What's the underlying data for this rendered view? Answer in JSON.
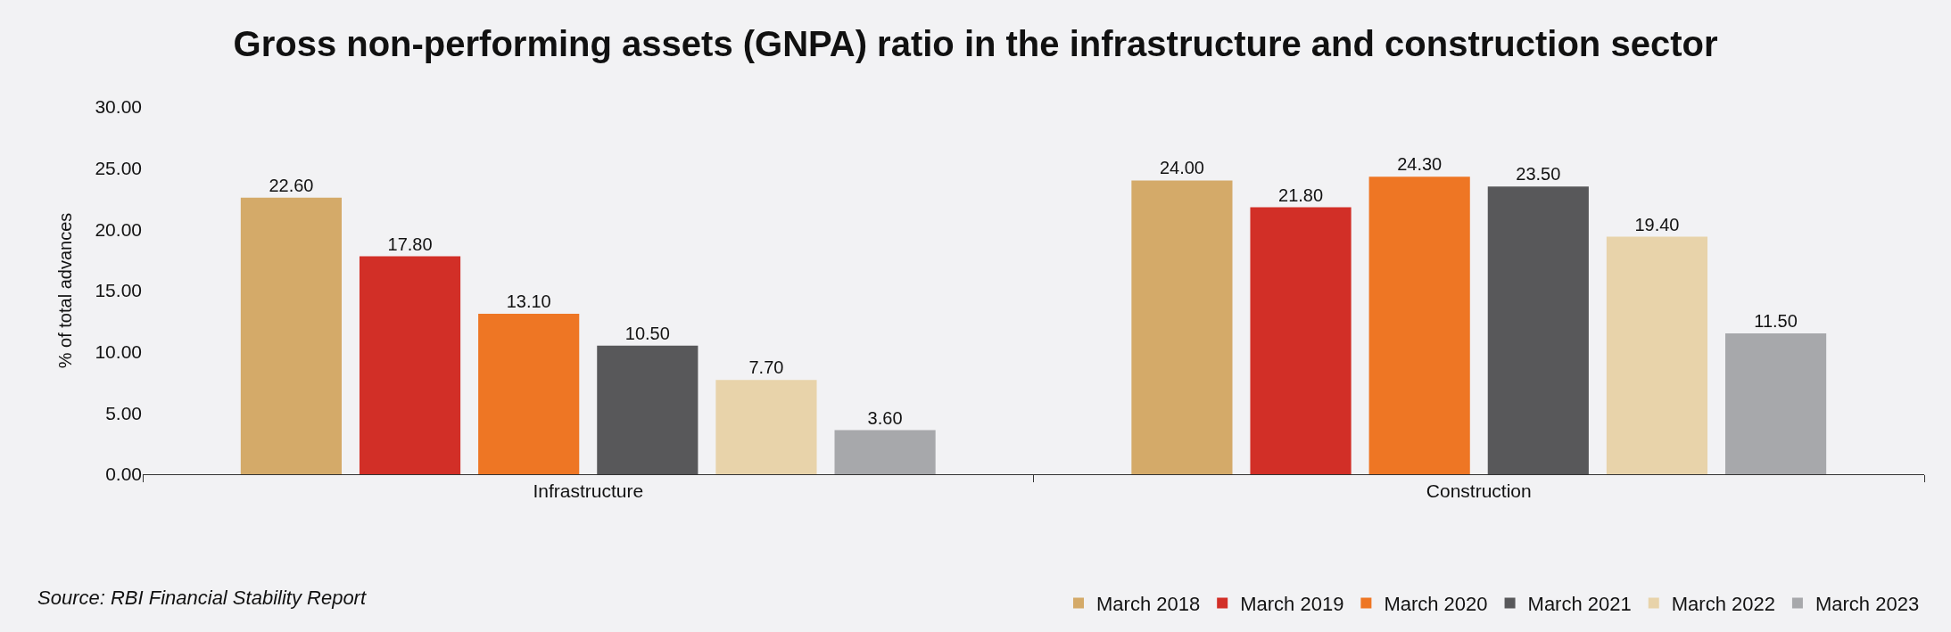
{
  "chart_data": {
    "type": "bar",
    "title": "Gross non-performing assets (GNPA) ratio in the infrastructure and construction sector",
    "ylabel": "% of total advances",
    "categories": [
      "Infrastructure",
      "Construction"
    ],
    "series": [
      {
        "name": "March 2018",
        "color": "#d4aa69",
        "values": [
          22.6,
          24.0
        ],
        "value_labels": [
          "22.60",
          "24.00"
        ]
      },
      {
        "name": "March 2019",
        "color": "#d22f27",
        "values": [
          17.8,
          21.8
        ],
        "value_labels": [
          "17.80",
          "21.80"
        ]
      },
      {
        "name": "March 2020",
        "color": "#ee7624",
        "values": [
          13.1,
          24.3
        ],
        "value_labels": [
          "13.10",
          "24.30"
        ]
      },
      {
        "name": "March 2021",
        "color": "#58585a",
        "values": [
          10.5,
          23.5
        ],
        "value_labels": [
          "10.50",
          "23.50"
        ]
      },
      {
        "name": "March 2022",
        "color": "#e8d3aa",
        "values": [
          7.7,
          19.4
        ],
        "value_labels": [
          "7.70",
          "19.40"
        ]
      },
      {
        "name": "March 2023",
        "color": "#a7a8ab",
        "values": [
          3.6,
          11.5
        ],
        "value_labels": [
          "3.60",
          "11.50"
        ]
      }
    ],
    "ylim": [
      0,
      30
    ],
    "yticks": [
      {
        "value": 0,
        "label": "0.00"
      },
      {
        "value": 5,
        "label": "5.00"
      },
      {
        "value": 10,
        "label": "10.00"
      },
      {
        "value": 15,
        "label": "15.00"
      },
      {
        "value": 20,
        "label": "20.00"
      },
      {
        "value": 25,
        "label": "25.00"
      },
      {
        "value": 30,
        "label": "30.00"
      }
    ],
    "grid": false,
    "legend": "bottom right",
    "annotations": [
      "Source: RBI Financial Stability Report"
    ]
  }
}
